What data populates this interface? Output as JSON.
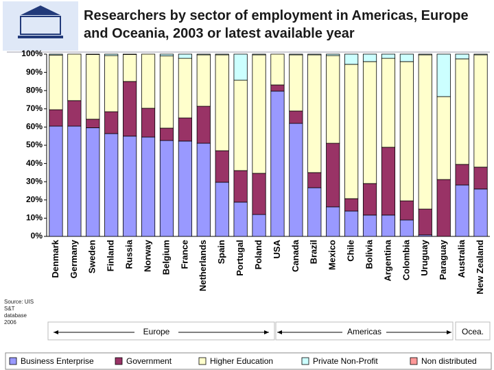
{
  "chart_data": {
    "type": "stacked-bar",
    "title": "Researchers by sector of employment in Americas, Europe and Oceania, 2003 or latest available year",
    "source": "Source: UIS S&T database 2006",
    "categories": [
      "Denmark",
      "Germany",
      "Sweden",
      "Finland",
      "Russia",
      "Norway",
      "Belgium",
      "France",
      "Netherlands",
      "Spain",
      "Portugal",
      "Poland",
      "USA",
      "Canada",
      "Brazil",
      "Mexico",
      "Chile",
      "Bolivia",
      "Argentina",
      "Colombia",
      "Uruguay",
      "Paraguay",
      "Australia",
      "New Zealand"
    ],
    "regions": [
      "Europe",
      "Americas",
      "Ocea."
    ],
    "series": [
      {
        "name": "Business Enterprise",
        "color": "#9999ff",
        "values": [
          60.5,
          60.5,
          59.6,
          56.4,
          55,
          54.5,
          52.6,
          52.3,
          51.1,
          29.7,
          18.8,
          12,
          79.7,
          62,
          26.7,
          16.2,
          13.9,
          11.7,
          11.7,
          9,
          0.8,
          0,
          28.2,
          26
        ]
      },
      {
        "name": "Government",
        "color": "#993366",
        "values": [
          9,
          14,
          4.7,
          12,
          30,
          15.8,
          6.8,
          12.7,
          20.3,
          17.3,
          17.3,
          22.6,
          3.4,
          6.8,
          8.3,
          34.9,
          6.8,
          17.3,
          37.2,
          10.5,
          14.2,
          31.2,
          11.3,
          12
        ]
      },
      {
        "name": "Higher Education",
        "color": "#ffffcc",
        "values": [
          30,
          25.5,
          35.5,
          30.8,
          14.8,
          29.7,
          39.6,
          32.7,
          28.2,
          52.6,
          49.6,
          65,
          16.9,
          30.8,
          64.6,
          48.1,
          73.7,
          66.9,
          48.8,
          76.4,
          84.6,
          45.5,
          57.9,
          61.6
        ]
      },
      {
        "name": "Private Non-Profit",
        "color": "#ccffff",
        "values": [
          0.5,
          0,
          0.2,
          0.8,
          0.2,
          0,
          1,
          2.3,
          0.4,
          0.4,
          14.3,
          0.4,
          0,
          0.4,
          0.4,
          0.8,
          5.6,
          4.1,
          2.3,
          4.1,
          0.4,
          23.3,
          2.6,
          0.4
        ]
      },
      {
        "name": "Non distributed",
        "color": "#ff9999",
        "values": [
          0,
          0,
          0,
          0,
          0,
          0,
          0,
          0,
          0,
          0,
          0,
          0,
          0,
          0,
          0,
          0,
          0,
          0,
          0,
          0,
          0,
          0,
          0,
          0
        ]
      }
    ],
    "ylim": [
      0,
      100
    ],
    "yticks": [
      {
        "value": 0,
        "label": "0%"
      },
      {
        "value": 10,
        "label": "10%"
      },
      {
        "value": 20,
        "label": "20%"
      },
      {
        "value": 30,
        "label": "30%"
      },
      {
        "value": 40,
        "label": "40%"
      },
      {
        "value": 50,
        "label": "50%"
      },
      {
        "value": 60,
        "label": "60%"
      },
      {
        "value": 70,
        "label": "70%"
      },
      {
        "value": 80,
        "label": "80%"
      },
      {
        "value": 90,
        "label": "90%"
      },
      {
        "value": 100,
        "label": "100%"
      }
    ]
  }
}
